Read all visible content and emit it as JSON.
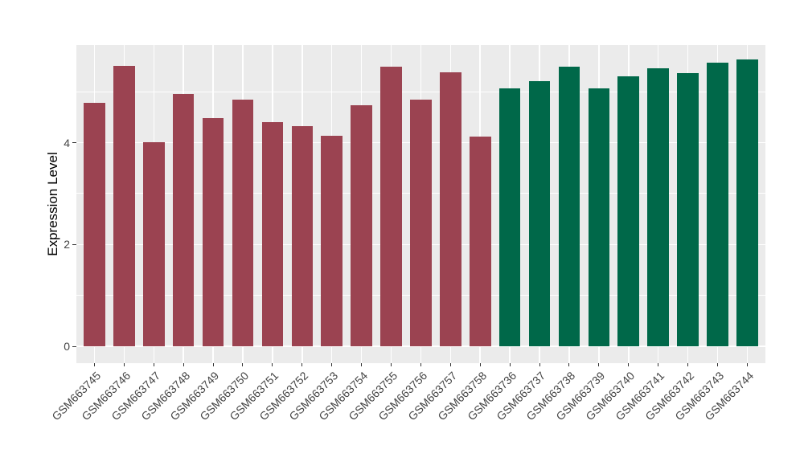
{
  "colors": {
    "figure_background": "#FFFFFF",
    "panel_background": "#EBEBEB",
    "gridline": "#FFFFFF",
    "axis_text": "#454545",
    "axis_title": "#000000",
    "tick_mark": "#333333"
  },
  "chart_data": {
    "type": "bar",
    "title": "",
    "xlabel": "",
    "ylabel": "Expression Level",
    "ylim": [
      0,
      5.92
    ],
    "yticks": [
      0,
      2,
      4
    ],
    "yticks_minor": [
      1,
      3,
      5
    ],
    "grid": "on",
    "legend_position": "none",
    "categories": [
      "GSM663745",
      "GSM663746",
      "GSM663747",
      "GSM663748",
      "GSM663749",
      "GSM663750",
      "GSM663751",
      "GSM663752",
      "GSM663753",
      "GSM663754",
      "GSM663755",
      "GSM663756",
      "GSM663757",
      "GSM663758",
      "GSM663736",
      "GSM663737",
      "GSM663738",
      "GSM663739",
      "GSM663740",
      "GSM663741",
      "GSM663742",
      "GSM663743",
      "GSM663744"
    ],
    "values": [
      4.78,
      5.51,
      4.01,
      4.95,
      4.49,
      4.84,
      4.4,
      4.33,
      4.13,
      4.73,
      5.49,
      4.84,
      5.38,
      4.12,
      5.07,
      5.21,
      5.5,
      5.07,
      5.31,
      5.46,
      5.37,
      5.57,
      5.63
    ],
    "groups": [
      "group1",
      "group1",
      "group1",
      "group1",
      "group1",
      "group1",
      "group1",
      "group1",
      "group1",
      "group1",
      "group1",
      "group1",
      "group1",
      "group1",
      "group2",
      "group2",
      "group2",
      "group2",
      "group2",
      "group2",
      "group2",
      "group2",
      "group2"
    ],
    "group_colors": {
      "group1": "#9B4351",
      "group2": "#006849"
    }
  }
}
